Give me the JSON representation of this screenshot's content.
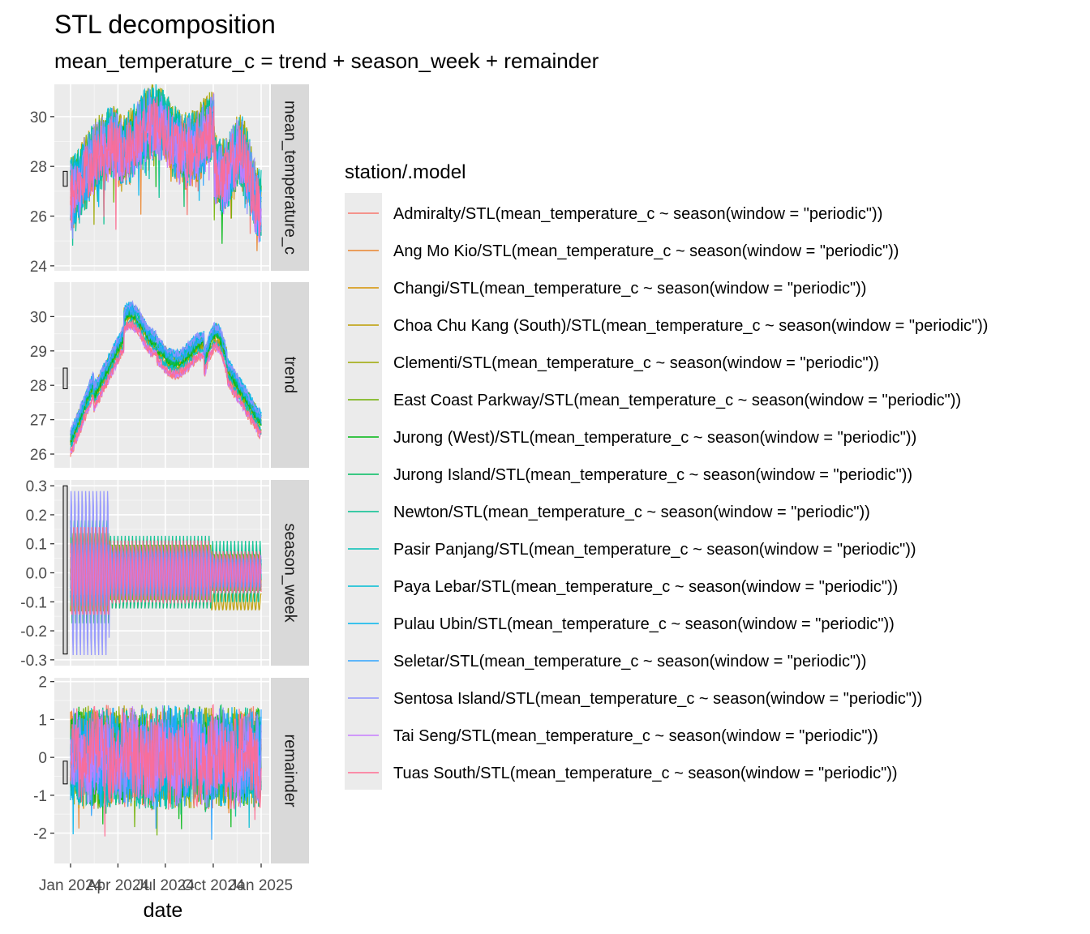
{
  "chart_data": {
    "type": "line",
    "title": "STL decomposition",
    "subtitle": "mean_temperature_c = trend + season_week + remainder",
    "xlabel": "date",
    "x_ticks": [
      "Jan 2024",
      "Apr 2024",
      "Jul 2024",
      "Oct 2024",
      "Jan 2025"
    ],
    "x_range": [
      "2024-01-01",
      "2025-01-01"
    ],
    "grid": true,
    "legend_position": "right",
    "legend_title": "station/.model",
    "series": [
      {
        "name": "Admiralty/STL(mean_temperature_c ~ season(window = \"periodic\"))",
        "color": "#F8766D"
      },
      {
        "name": "Ang Mo Kio/STL(mean_temperature_c ~ season(window = \"periodic\"))",
        "color": "#E9842C"
      },
      {
        "name": "Changi/STL(mean_temperature_c ~ season(window = \"periodic\"))",
        "color": "#D69100"
      },
      {
        "name": "Choa Chu Kang (South)/STL(mean_temperature_c ~ season(window = \"periodic\"))",
        "color": "#BC9D00"
      },
      {
        "name": "Clementi/STL(mean_temperature_c ~ season(window = \"periodic\"))",
        "color": "#9CA700"
      },
      {
        "name": "East Coast Parkway/STL(mean_temperature_c ~ season(window = \"periodic\"))",
        "color": "#6FB000"
      },
      {
        "name": "Jurong (West)/STL(mean_temperature_c ~ season(window = \"periodic\"))",
        "color": "#00B813"
      },
      {
        "name": "Jurong Island/STL(mean_temperature_c ~ season(window = \"periodic\"))",
        "color": "#00BD61"
      },
      {
        "name": "Newton/STL(mean_temperature_c ~ season(window = \"periodic\"))",
        "color": "#00C08E"
      },
      {
        "name": "Pasir Panjang/STL(mean_temperature_c ~ season(window = \"periodic\"))",
        "color": "#00C0B4"
      },
      {
        "name": "Paya Lebar/STL(mean_temperature_c ~ season(window = \"periodic\"))",
        "color": "#00BDD4"
      },
      {
        "name": "Pulau Ubin/STL(mean_temperature_c ~ season(window = \"periodic\"))",
        "color": "#00B5EE"
      },
      {
        "name": "Seletar/STL(mean_temperature_c ~ season(window = \"periodic\"))",
        "color": "#2FA4FF"
      },
      {
        "name": "Sentosa Island/STL(mean_temperature_c ~ season(window = \"periodic\"))",
        "color": "#8F91FF"
      },
      {
        "name": "Tai Seng/STL(mean_temperature_c ~ season(window = \"periodic\"))",
        "color": "#C77CFF"
      },
      {
        "name": "Tuas South/STL(mean_temperature_c ~ season(window = \"periodic\"))",
        "color": "#FF6C91"
      }
    ],
    "panels": [
      {
        "label": "mean_temperature_c",
        "ylim": [
          23.8,
          31.3
        ],
        "y_ticks": [
          24,
          26,
          28,
          30
        ],
        "y_tick_labels": [
          "24",
          "26",
          "28",
          "30"
        ],
        "scale_bar": [
          27.2,
          27.8
        ]
      },
      {
        "label": "trend",
        "ylim": [
          25.6,
          31.0
        ],
        "y_ticks": [
          26,
          27,
          28,
          29,
          30
        ],
        "y_tick_labels": [
          "26",
          "27",
          "28",
          "29",
          "30"
        ],
        "scale_bar": [
          27.9,
          28.5
        ]
      },
      {
        "label": "season_week",
        "ylim": [
          -0.32,
          0.32
        ],
        "y_ticks": [
          -0.3,
          -0.2,
          -0.1,
          0.0,
          0.1,
          0.2,
          0.3
        ],
        "y_tick_labels": [
          "-0.3",
          "-0.2",
          "-0.1",
          "0.0",
          "0.1",
          "0.2",
          "0.3"
        ],
        "scale_bar": [
          -0.28,
          0.3
        ]
      },
      {
        "label": "remainder",
        "ylim": [
          -2.8,
          2.1
        ],
        "y_ticks": [
          -2,
          -1,
          0,
          1,
          2
        ],
        "y_tick_labels": [
          "-2",
          "-1",
          "0",
          "1",
          "2"
        ],
        "scale_bar": [
          -0.7,
          -0.1
        ]
      }
    ]
  }
}
